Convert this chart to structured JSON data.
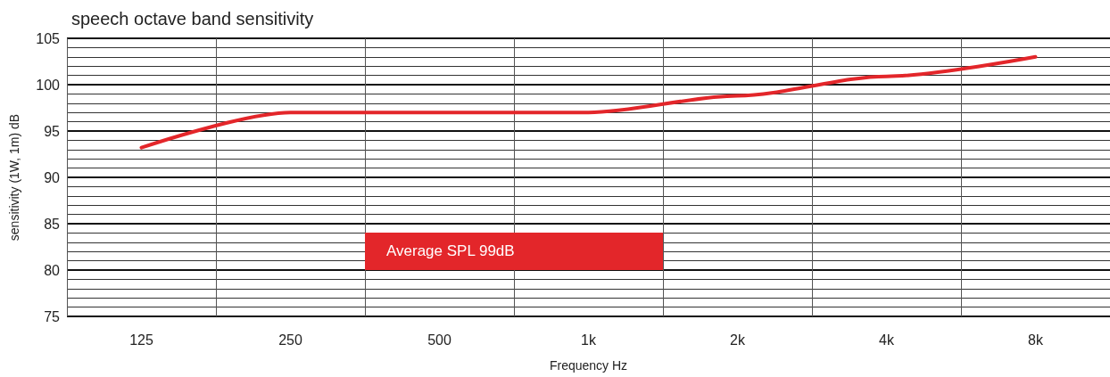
{
  "chart_data": {
    "type": "line",
    "title": "speech octave band sensitivity",
    "xlabel": "Frequency Hz",
    "ylabel": "sensitivity (1W, 1m) dB",
    "categories": [
      "125",
      "250",
      "500",
      "1k",
      "2k",
      "4k",
      "8k"
    ],
    "series": [
      {
        "color": "#e3262a",
        "values": [
          93.2,
          97,
          97,
          97,
          98.8,
          100.9,
          103
        ]
      }
    ],
    "ylim": [
      75,
      105
    ],
    "yticks": [
      75,
      80,
      85,
      90,
      95,
      100,
      105
    ],
    "grid": true,
    "marker": "none",
    "line_style": "solid",
    "annotations": [
      "Average SPL 99dB"
    ]
  }
}
